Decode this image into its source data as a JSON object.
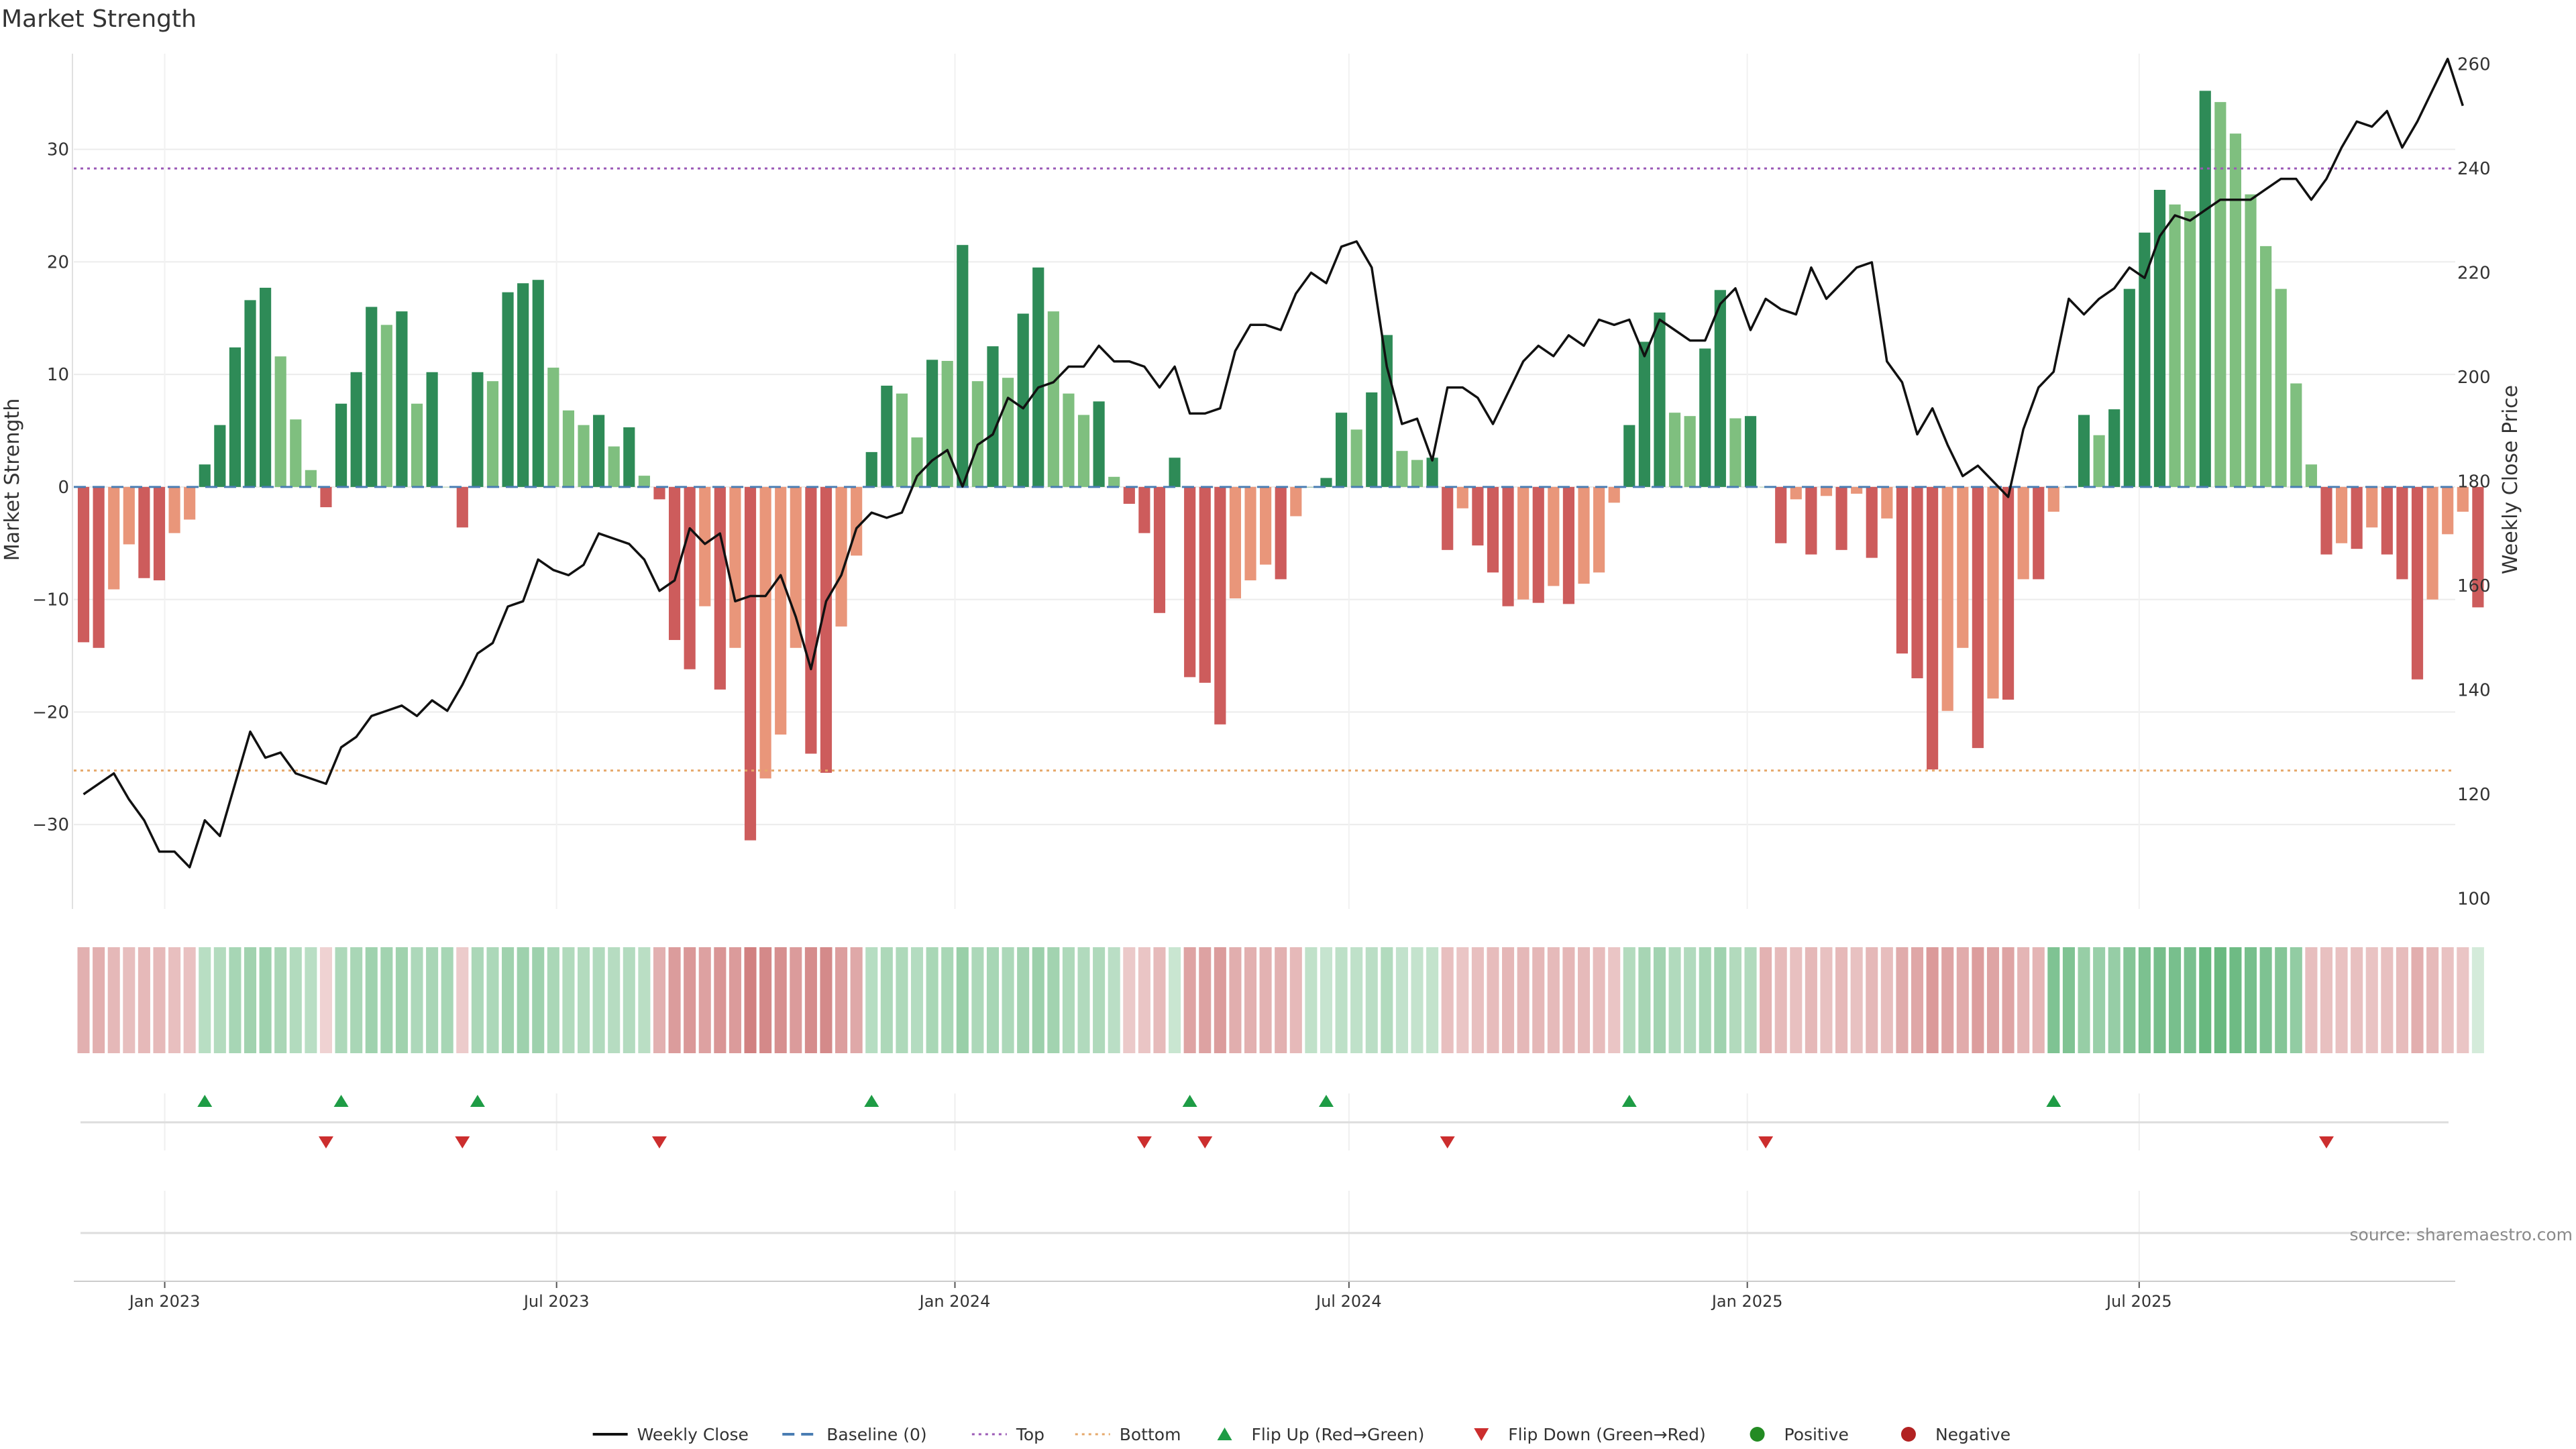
{
  "chart_data": {
    "type": "bar",
    "title": "Market Strength",
    "ylabel_left": "Market Strength",
    "ylabel_right": "Weekly Close Price",
    "source": "source: sharemaestro.com",
    "left_axis": {
      "ylim": [
        -37.5,
        38.5
      ],
      "ticks": [
        -30,
        -20,
        -10,
        0,
        10,
        20,
        30
      ]
    },
    "right_axis": {
      "ylim": [
        98,
        262
      ],
      "ticks": [
        100,
        120,
        140,
        160,
        180,
        200,
        220,
        240,
        260
      ]
    },
    "x_axis": {
      "type": "date",
      "range": [
        "2022-11-20",
        "2025-11-24"
      ],
      "ticks": [
        {
          "date": "2023-01-01",
          "label": "Jan 2023"
        },
        {
          "date": "2023-07-01",
          "label": "Jul 2023"
        },
        {
          "date": "2024-01-01",
          "label": "Jan 2024"
        },
        {
          "date": "2024-07-01",
          "label": "Jul 2024"
        },
        {
          "date": "2025-01-01",
          "label": "Jan 2025"
        },
        {
          "date": "2025-07-01",
          "label": "Jul 2025"
        }
      ]
    },
    "grid": true,
    "legend_position": "bottom",
    "reference_lines": {
      "top": 28.3,
      "bottom": -25.2,
      "baseline": 0
    },
    "weeks_start": "2022-11-21",
    "strength_values": [
      -13.8,
      -14.3,
      -9.1,
      -5.1,
      -8.1,
      -8.3,
      -4.1,
      -2.9,
      2,
      5.5,
      12.4,
      16.6,
      17.7,
      11.6,
      6,
      1.5,
      -1.8,
      7.4,
      10.2,
      16,
      14.4,
      15.6,
      7.4,
      10.2,
      0,
      -3.6,
      10.2,
      9.4,
      17.3,
      18.1,
      18.4,
      10.6,
      6.8,
      5.5,
      6.4,
      3.6,
      5.3,
      1,
      -1.1,
      -13.6,
      -16.2,
      -10.6,
      -18,
      -14.3,
      -31.4,
      -25.9,
      -22,
      -14.3,
      -23.7,
      -25.4,
      -12.4,
      -6.1,
      3.1,
      9,
      8.3,
      4.4,
      11.3,
      11.2,
      21.5,
      9.4,
      12.5,
      9.7,
      15.4,
      19.5,
      15.6,
      8.3,
      6.4,
      7.6,
      0.9,
      -1.5,
      -4.1,
      -11.2,
      2.6,
      -16.9,
      -17.4,
      -21.1,
      -9.9,
      -8.3,
      -6.9,
      -8.2,
      -2.6,
      0,
      0.8,
      6.6,
      5.1,
      8.4,
      13.5,
      3.2,
      2.4,
      2.6,
      -5.6,
      -1.9,
      -5.2,
      -7.6,
      -10.6,
      -10,
      -10.3,
      -8.8,
      -10.4,
      -8.6,
      -7.6,
      -1.4,
      5.5,
      12.9,
      15.5,
      6.6,
      6.3,
      12.3,
      17.5,
      6.1,
      6.3,
      0,
      -5,
      -1.1,
      -6,
      -0.8,
      -5.6,
      -0.6,
      -6.3,
      -2.8,
      -14.8,
      -17,
      -25.1,
      -19.9,
      -14.3,
      -23.2,
      -18.8,
      -18.9,
      -8.2,
      -8.2,
      -2.2,
      0,
      6.4,
      4.6,
      6.9,
      17.6,
      22.6,
      26.4,
      25.1,
      24.5,
      35.2,
      34.2,
      31.4,
      26,
      21.4,
      17.6,
      9.2,
      2,
      -6,
      -5,
      -5.5,
      -3.6,
      -6,
      -8.2,
      -17.1,
      -10,
      -4.2,
      -2.2,
      -10.7
    ],
    "price_values": [
      120,
      122,
      124,
      119,
      115,
      109,
      109,
      106,
      115,
      112,
      122,
      132,
      127,
      128,
      124,
      123,
      122,
      129,
      131,
      135,
      136,
      137,
      135,
      138,
      136,
      141,
      147,
      149,
      156,
      157,
      165,
      163,
      162,
      164,
      170,
      169,
      168,
      165,
      159,
      161,
      171,
      168,
      170,
      157,
      158,
      158,
      162,
      154,
      144,
      157,
      162,
      171,
      174,
      173,
      174,
      181,
      184,
      186,
      179,
      187,
      189,
      196,
      194,
      198,
      199,
      202,
      202,
      206,
      203,
      203,
      202,
      198,
      202,
      193,
      193,
      194,
      205,
      210,
      210,
      209,
      216,
      220,
      218,
      225,
      226,
      221,
      202,
      191,
      192,
      184,
      198,
      198,
      196,
      191,
      197,
      203,
      206,
      204,
      208,
      206,
      211,
      210,
      211,
      204,
      211,
      209,
      207,
      207,
      214,
      217,
      209,
      215,
      213,
      212,
      221,
      215,
      218,
      221,
      222,
      203,
      199,
      189,
      194,
      187,
      181,
      183,
      180,
      177,
      190,
      198,
      201,
      215,
      212,
      215,
      217,
      221,
      219,
      227,
      231,
      230,
      232,
      234,
      234,
      234,
      236,
      238,
      238,
      234,
      238,
      244,
      249,
      248,
      251,
      244,
      249,
      255,
      261,
      252
    ],
    "color_strip": {
      "domain": [
        -31.4,
        35.2
      ],
      "weeks": [
        {
          "from": 0,
          "to": 8,
          "value": -8.3
        },
        {
          "from": 8,
          "to": 16,
          "value": 10.0
        },
        {
          "from": 16,
          "to": 17,
          "value": -1.8
        },
        {
          "from": 17,
          "to": 25,
          "value": 11.0
        },
        {
          "from": 25,
          "to": 26,
          "value": -3.6
        },
        {
          "from": 26,
          "to": 38,
          "value": 10.0
        },
        {
          "from": 38,
          "to": 52,
          "value": -17.0
        },
        {
          "from": 52,
          "to": 69,
          "value": 10.0
        },
        {
          "from": 69,
          "to": 72,
          "value": -6.0
        },
        {
          "from": 72,
          "to": 73,
          "value": 2.6
        },
        {
          "from": 73,
          "to": 81,
          "value": -12.0
        },
        {
          "from": 81,
          "to": 90,
          "value": 5.0
        },
        {
          "from": 90,
          "to": 102,
          "value": -7.6
        },
        {
          "from": 102,
          "to": 111,
          "value": 10.0
        },
        {
          "from": 111,
          "to": 130,
          "value": -10.0
        },
        {
          "from": 130,
          "to": 147,
          "value": 21.0
        },
        {
          "from": 147,
          "to": 158,
          "value": -7.0
        }
      ]
    },
    "events": {
      "flip_up": [
        8,
        17,
        26,
        52,
        73,
        82,
        102,
        130
      ],
      "flip_down": [
        16,
        25,
        38,
        70,
        74,
        90,
        111,
        148
      ]
    },
    "colors": {
      "strong_positive": "#2e8b57",
      "weak_positive": "#7fbf7f",
      "strong_negative": "#cd5c5c",
      "weak_negative": "#e9967a",
      "price_line": "#111111",
      "baseline": "#4a7db3",
      "top_line": "#9b59b6",
      "bottom_line": "#e6a86a",
      "flip_up": "#1e9c45",
      "flip_down": "#cc2e2e",
      "positive": "#238b23",
      "negative": "#b22222"
    },
    "legend": [
      {
        "label": "Weekly Close",
        "marker": "line"
      },
      {
        "label": "Baseline (0)",
        "marker": "dash"
      },
      {
        "label": "Top",
        "marker": "dot-line"
      },
      {
        "label": "Bottom",
        "marker": "dot-line"
      },
      {
        "label": "Flip Up (Red→Green)",
        "marker": "triangle-up"
      },
      {
        "label": "Flip Down (Green→Red)",
        "marker": "triangle-down"
      },
      {
        "label": "Positive",
        "marker": "circle"
      },
      {
        "label": "Negative",
        "marker": "circle"
      }
    ]
  }
}
